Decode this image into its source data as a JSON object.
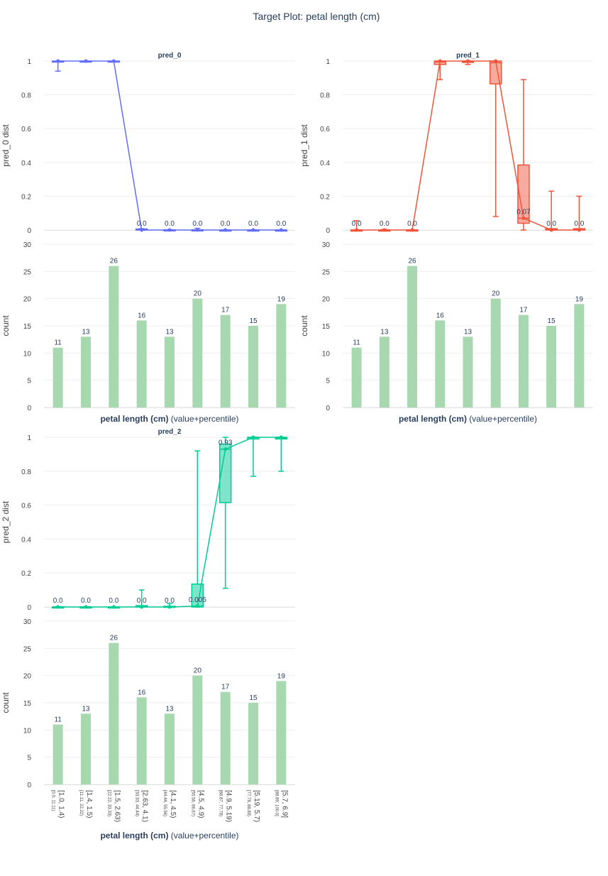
{
  "figure_title": "Target Plot: petal length (cm)",
  "colors": {
    "pred_0": "#636efa",
    "pred_1": "#ef553b",
    "pred_2": "#00cc96",
    "count_bar": "#a8d8b0",
    "grid": "#eeeeee",
    "axis_text": "#444444",
    "title_text": "#2a3f5f"
  },
  "chart_data": [
    {
      "type": "box",
      "panel": "pred_0",
      "title": "pred_0",
      "ylabel": "pred_0 dist",
      "ylim": [
        0,
        1
      ],
      "yticks": [
        0,
        0.2,
        0.4,
        0.6,
        0.8,
        1
      ],
      "categories": [
        "[1.0, 1.4)",
        "[1.4, 1.5)",
        "[1.5, 2.63)",
        "[2.63, 4.1)",
        "[4.1, 4.5)",
        "[4.5, 4.9)",
        "[4.9, 5.19)",
        "[5.19, 5.7)",
        "[5.7, 6.9]"
      ],
      "mean_line": [
        1,
        1,
        1,
        0,
        0,
        0,
        0,
        0,
        0
      ],
      "mean_labels": [
        "",
        "",
        "",
        "0.0",
        "0.0",
        "0.0",
        "0.0",
        "0.0",
        "0.0"
      ],
      "boxes": [
        {
          "min": 0.94,
          "q1": 0.997,
          "median": 0.999,
          "q3": 1.0,
          "max": 1.0
        },
        {
          "min": 0.995,
          "q1": 0.998,
          "median": 0.999,
          "q3": 1.0,
          "max": 1.0
        },
        {
          "min": 0.997,
          "q1": 0.998,
          "median": 0.999,
          "q3": 1.0,
          "max": 1.0
        },
        {
          "min": 0.0,
          "q1": 0.0,
          "median": 0.002,
          "q3": 0.006,
          "max": 0.008
        },
        {
          "min": 0.0,
          "q1": 0.0,
          "median": 0.0,
          "q3": 0.001,
          "max": 0.002
        },
        {
          "min": 0.0,
          "q1": 0.0,
          "median": 0.0,
          "q3": 0.001,
          "max": 0.01
        },
        {
          "min": 0.0,
          "q1": 0.0,
          "median": 0.0,
          "q3": 0.0,
          "max": 0.001
        },
        {
          "min": 0.0,
          "q1": 0.0,
          "median": 0.0,
          "q3": 0.0,
          "max": 0.001
        },
        {
          "min": 0.0,
          "q1": 0.0,
          "median": 0.0,
          "q3": 0.0,
          "max": 0.001
        }
      ]
    },
    {
      "type": "box",
      "panel": "pred_1",
      "title": "pred_1",
      "ylabel": "pred_1 dist",
      "ylim": [
        0,
        1
      ],
      "yticks": [
        0,
        0.2,
        0.4,
        0.6,
        0.8,
        1
      ],
      "categories": [
        "[1.0, 1.4)",
        "[1.4, 1.5)",
        "[1.5, 2.63)",
        "[2.63, 4.1)",
        "[4.1, 4.5)",
        "[4.5, 4.9)",
        "[4.9, 5.19)",
        "[5.19, 5.7)",
        "[5.7, 6.9]"
      ],
      "mean_line": [
        0,
        0,
        0,
        1,
        1,
        1,
        0.07,
        0,
        0
      ],
      "mean_labels": [
        "0.0",
        "0.0",
        "0.0",
        "",
        "",
        "",
        "0.07",
        "0.0",
        "0.0"
      ],
      "boxes": [
        {
          "min": 0.0,
          "q1": 0.0,
          "median": 0.0,
          "q3": 0.0,
          "max": 0.055
        },
        {
          "min": 0.0,
          "q1": 0.0,
          "median": 0.0,
          "q3": 0.0,
          "max": 0.004
        },
        {
          "min": 0.0,
          "q1": 0.0,
          "median": 0.0,
          "q3": 0.0,
          "max": 0.002
        },
        {
          "min": 0.89,
          "q1": 0.98,
          "median": 0.995,
          "q3": 1.0,
          "max": 1.0
        },
        {
          "min": 0.98,
          "q1": 0.992,
          "median": 0.997,
          "q3": 1.0,
          "max": 1.0
        },
        {
          "min": 0.08,
          "q1": 0.865,
          "median": 0.99,
          "q3": 1.0,
          "max": 1.0
        },
        {
          "min": 0.0,
          "q1": 0.04,
          "median": 0.07,
          "q3": 0.385,
          "max": 0.89
        },
        {
          "min": 0.0,
          "q1": 0.0,
          "median": 0.002,
          "q3": 0.008,
          "max": 0.23
        },
        {
          "min": 0.0,
          "q1": 0.0,
          "median": 0.002,
          "q3": 0.008,
          "max": 0.2
        }
      ]
    },
    {
      "type": "box",
      "panel": "pred_2",
      "title": "pred_2",
      "ylabel": "pred_2 dist",
      "ylim": [
        0,
        1
      ],
      "yticks": [
        0,
        0.2,
        0.4,
        0.6,
        0.8,
        1
      ],
      "categories": [
        "[1.0, 1.4)",
        "[1.4, 1.5)",
        "[1.5, 2.63)",
        "[2.63, 4.1)",
        "[4.1, 4.5)",
        "[4.5, 4.9)",
        "[4.9, 5.19)",
        "[5.19, 5.7)",
        "[5.7, 6.9]"
      ],
      "mean_line": [
        0,
        0,
        0,
        0,
        0,
        0.005,
        0.93,
        1,
        1
      ],
      "mean_labels": [
        "0.0",
        "0.0",
        "0.0",
        "0.0",
        "0.0",
        "0.005",
        "0.93",
        "",
        ""
      ],
      "boxes": [
        {
          "min": 0.0,
          "q1": 0.0,
          "median": 0.0,
          "q3": 0.0,
          "max": 0.002
        },
        {
          "min": 0.0,
          "q1": 0.0,
          "median": 0.0,
          "q3": 0.0,
          "max": 0.001
        },
        {
          "min": 0.0,
          "q1": 0.0,
          "median": 0.0,
          "q3": 0.0,
          "max": 0.001
        },
        {
          "min": 0.0,
          "q1": 0.0,
          "median": 0.001,
          "q3": 0.008,
          "max": 0.1
        },
        {
          "min": 0.0,
          "q1": 0.0,
          "median": 0.001,
          "q3": 0.004,
          "max": 0.02
        },
        {
          "min": 0.0,
          "q1": 0.0,
          "median": 0.005,
          "q3": 0.135,
          "max": 0.92
        },
        {
          "min": 0.11,
          "q1": 0.615,
          "median": 0.93,
          "q3": 0.96,
          "max": 1.0
        },
        {
          "min": 0.77,
          "q1": 0.99,
          "median": 0.998,
          "q3": 1.0,
          "max": 1.0
        },
        {
          "min": 0.8,
          "q1": 0.99,
          "median": 0.995,
          "q3": 1.0,
          "max": 1.0
        }
      ]
    },
    {
      "type": "bar",
      "panel": "count_1",
      "ylabel": "count",
      "xlabel_bold": "petal length (cm)",
      "xlabel_rest": "(value+percentile)",
      "ylim": [
        0,
        30
      ],
      "yticks": [
        0,
        5,
        10,
        15,
        20,
        25,
        30
      ],
      "categories": [
        "[1.0, 1.4)",
        "[1.4, 1.5)",
        "[1.5, 2.63)",
        "[2.63, 4.1)",
        "[4.1, 4.5)",
        "[4.5, 4.9)",
        "[4.9, 5.19)",
        "[5.19, 5.7)",
        "[5.7, 6.9]"
      ],
      "values": [
        11,
        13,
        26,
        16,
        13,
        20,
        17,
        15,
        19
      ]
    },
    {
      "type": "bar",
      "panel": "count_2",
      "ylabel": "count",
      "xlabel_bold": "petal length (cm)",
      "xlabel_rest": "(value+percentile)",
      "ylim": [
        0,
        30
      ],
      "yticks": [
        0,
        5,
        10,
        15,
        20,
        25,
        30
      ],
      "categories": [
        "[1.0, 1.4)",
        "[1.4, 1.5)",
        "[1.5, 2.63)",
        "[2.63, 4.1)",
        "[4.1, 4.5)",
        "[4.5, 4.9)",
        "[4.9, 5.19)",
        "[5.19, 5.7)",
        "[5.7, 6.9]"
      ],
      "values": [
        11,
        13,
        26,
        16,
        13,
        20,
        17,
        15,
        19
      ]
    },
    {
      "type": "bar",
      "panel": "count_3",
      "ylabel": "count",
      "xlabel_bold": "petal length (cm)",
      "xlabel_rest": "(value+percentile)",
      "ylim": [
        0,
        30
      ],
      "yticks": [
        0,
        5,
        10,
        15,
        20,
        25,
        30
      ],
      "categories": [
        "[1.0, 1.4)",
        "[1.4, 1.5)",
        "[1.5, 2.63)",
        "[2.63, 4.1)",
        "[4.1, 4.5)",
        "[4.5, 4.9)",
        "[4.9, 5.19)",
        "[5.19, 5.7)",
        "[5.7, 6.9]"
      ],
      "percentiles": [
        "[0.0, 11.11)",
        "[11.11, 22.22)",
        "[22.22, 33.33)",
        "[33.33, 44.44)",
        "[44.44, 55.56)",
        "[55.56, 66.67)",
        "[66.67, 77.78)",
        "[77.78, 88.89)",
        "[88.89, 100.0]"
      ],
      "values": [
        11,
        13,
        26,
        16,
        13,
        20,
        17,
        15,
        19
      ]
    }
  ]
}
